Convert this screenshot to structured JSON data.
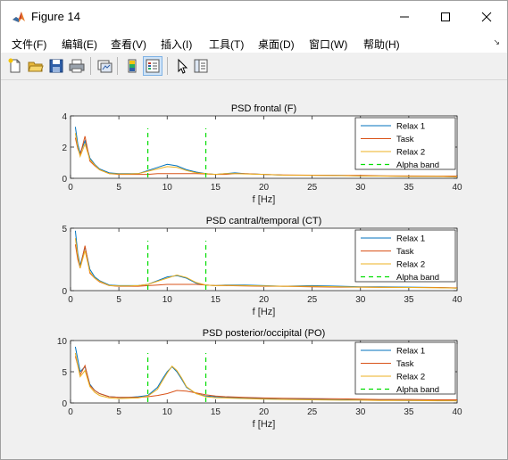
{
  "window": {
    "title": "Figure 14"
  },
  "menu": [
    "文件(F)",
    "编辑(E)",
    "查看(V)",
    "插入(I)",
    "工具(T)",
    "桌面(D)",
    "窗口(W)",
    "帮助(H)"
  ],
  "toolbar_icons": [
    "new-figure-icon",
    "open-file-icon",
    "save-icon",
    "print-icon",
    "link-plot-icon",
    "insert-colorbar-icon",
    "insert-legend-icon",
    "edit-plot-pointer-icon",
    "property-inspector-icon"
  ],
  "chart_data": [
    {
      "type": "line",
      "title": "PSD frontal (F)",
      "xlabel": "f [Hz]",
      "xlim": [
        0,
        40
      ],
      "ylim": [
        0,
        4
      ],
      "xticks": [
        "0",
        "5",
        "10",
        "15",
        "20",
        "25",
        "30",
        "35",
        "40"
      ],
      "yticks": [
        "0",
        "2",
        "4"
      ],
      "legend": {
        "position": "top-right",
        "entries": [
          "Relax 1",
          "Task",
          "Relax 2",
          "Alpha band"
        ]
      },
      "alpha_band": [
        8,
        14
      ],
      "series": [
        {
          "name": "Relax 1",
          "color": "#0072BD",
          "x": [
            0.5,
            0.75,
            1,
            1.5,
            2,
            2.5,
            3,
            4,
            5,
            6,
            7,
            8,
            9,
            10,
            11,
            12,
            13,
            14,
            15,
            16,
            17,
            18,
            20,
            22,
            25,
            28,
            30,
            32,
            35,
            38,
            40
          ],
          "y": [
            3.3,
            2.2,
            1.6,
            2.4,
            1.3,
            0.9,
            0.6,
            0.35,
            0.3,
            0.3,
            0.3,
            0.5,
            0.7,
            0.9,
            0.8,
            0.55,
            0.4,
            0.3,
            0.25,
            0.3,
            0.35,
            0.3,
            0.25,
            0.2,
            0.2,
            0.18,
            0.15,
            0.15,
            0.12,
            0.12,
            0.1
          ]
        },
        {
          "name": "Task",
          "color": "#D95319",
          "x": [
            0.5,
            0.75,
            1,
            1.5,
            2,
            2.5,
            3,
            4,
            5,
            6,
            7,
            8,
            9,
            10,
            11,
            12,
            13,
            14,
            15,
            16,
            17,
            18,
            20,
            22,
            25,
            28,
            30,
            32,
            35,
            38,
            40
          ],
          "y": [
            2.6,
            1.9,
            1.5,
            2.7,
            1.1,
            0.8,
            0.55,
            0.3,
            0.25,
            0.25,
            0.25,
            0.25,
            0.3,
            0.3,
            0.3,
            0.3,
            0.3,
            0.28,
            0.25,
            0.25,
            0.3,
            0.3,
            0.25,
            0.22,
            0.2,
            0.18,
            0.18,
            0.16,
            0.15,
            0.14,
            0.14
          ]
        },
        {
          "name": "Relax 2",
          "color": "#EDB120",
          "x": [
            0.5,
            0.75,
            1,
            1.5,
            2,
            2.5,
            3,
            4,
            5,
            6,
            7,
            8,
            9,
            10,
            11,
            12,
            13,
            14,
            15,
            16,
            17,
            18,
            20,
            22,
            25,
            28,
            30,
            32,
            35,
            38,
            40
          ],
          "y": [
            2.9,
            2.0,
            1.4,
            2.2,
            1.2,
            0.85,
            0.55,
            0.3,
            0.28,
            0.28,
            0.3,
            0.45,
            0.6,
            0.75,
            0.7,
            0.5,
            0.35,
            0.3,
            0.25,
            0.3,
            0.3,
            0.28,
            0.25,
            0.2,
            0.18,
            0.17,
            0.15,
            0.14,
            0.12,
            0.12,
            0.1
          ]
        },
        {
          "name": "Alpha band",
          "color": "#00DD00",
          "style": "dashed",
          "x_lines": [
            8,
            14
          ]
        }
      ]
    },
    {
      "type": "line",
      "title": "PSD cantral/temporal (CT)",
      "xlabel": "f [Hz]",
      "xlim": [
        0,
        40
      ],
      "ylim": [
        0,
        5
      ],
      "xticks": [
        "0",
        "5",
        "10",
        "15",
        "20",
        "25",
        "30",
        "35",
        "40"
      ],
      "yticks": [
        "0",
        "5"
      ],
      "legend": {
        "position": "top-right",
        "entries": [
          "Relax 1",
          "Task",
          "Relax 2",
          "Alpha band"
        ]
      },
      "alpha_band": [
        8,
        14
      ],
      "series": [
        {
          "name": "Relax 1",
          "color": "#0072BD",
          "x": [
            0.5,
            0.75,
            1,
            1.5,
            2,
            2.5,
            3,
            4,
            5,
            6,
            7,
            8,
            9,
            10,
            11,
            12,
            13,
            14,
            15,
            16,
            18,
            20,
            22,
            25,
            28,
            30,
            32,
            35,
            38,
            40
          ],
          "y": [
            4.8,
            3.0,
            2.0,
            3.5,
            1.7,
            1.1,
            0.8,
            0.45,
            0.4,
            0.4,
            0.4,
            0.5,
            0.8,
            1.1,
            1.2,
            1.0,
            0.6,
            0.45,
            0.4,
            0.45,
            0.45,
            0.4,
            0.35,
            0.4,
            0.35,
            0.3,
            0.3,
            0.28,
            0.25,
            0.2
          ]
        },
        {
          "name": "Task",
          "color": "#D95319",
          "x": [
            0.5,
            0.75,
            1,
            1.5,
            2,
            2.5,
            3,
            4,
            5,
            6,
            7,
            8,
            9,
            10,
            11,
            12,
            13,
            14,
            15,
            16,
            18,
            20,
            22,
            25,
            28,
            30,
            32,
            35,
            38,
            40
          ],
          "y": [
            3.7,
            2.5,
            1.8,
            3.6,
            1.4,
            1.0,
            0.7,
            0.4,
            0.35,
            0.35,
            0.35,
            0.4,
            0.45,
            0.5,
            0.5,
            0.5,
            0.5,
            0.45,
            0.4,
            0.4,
            0.38,
            0.35,
            0.35,
            0.3,
            0.28,
            0.28,
            0.26,
            0.25,
            0.25,
            0.22
          ]
        },
        {
          "name": "Relax 2",
          "color": "#EDB120",
          "x": [
            0.5,
            0.75,
            1,
            1.5,
            2,
            2.5,
            3,
            4,
            5,
            6,
            7,
            8,
            9,
            10,
            11,
            12,
            13,
            14,
            15,
            16,
            18,
            20,
            22,
            25,
            28,
            30,
            32,
            35,
            38,
            40
          ],
          "y": [
            4.2,
            2.8,
            1.8,
            3.2,
            1.5,
            1.0,
            0.75,
            0.4,
            0.38,
            0.38,
            0.4,
            0.5,
            0.75,
            1.0,
            1.25,
            1.05,
            0.65,
            0.45,
            0.4,
            0.42,
            0.4,
            0.38,
            0.35,
            0.35,
            0.3,
            0.28,
            0.27,
            0.25,
            0.22,
            0.2
          ]
        },
        {
          "name": "Alpha band",
          "color": "#00DD00",
          "style": "dashed",
          "x_lines": [
            8,
            14
          ]
        }
      ]
    },
    {
      "type": "line",
      "title": "PSD posterior/occipital (PO)",
      "xlabel": "f [Hz]",
      "xlim": [
        0,
        40
      ],
      "ylim": [
        0,
        10
      ],
      "xticks": [
        "0",
        "5",
        "10",
        "15",
        "20",
        "25",
        "30",
        "35",
        "40"
      ],
      "yticks": [
        "0",
        "5",
        "10"
      ],
      "legend": {
        "position": "top-right",
        "entries": [
          "Relax 1",
          "Task",
          "Relax 2",
          "Alpha band"
        ]
      },
      "alpha_band": [
        8,
        14
      ],
      "series": [
        {
          "name": "Relax 1",
          "color": "#0072BD",
          "x": [
            0.5,
            0.75,
            1,
            1.5,
            2,
            2.5,
            3,
            4,
            5,
            6,
            7,
            8,
            9,
            9.5,
            10,
            10.5,
            11,
            11.5,
            12,
            13,
            14,
            15,
            16,
            18,
            20,
            22,
            25,
            28,
            30,
            32,
            35,
            38,
            40
          ],
          "y": [
            9.0,
            7.0,
            5.0,
            5.8,
            3.0,
            2.0,
            1.5,
            1.0,
            0.9,
            0.9,
            1.0,
            1.2,
            2.5,
            3.8,
            5.0,
            5.8,
            5.0,
            3.8,
            2.5,
            1.5,
            1.1,
            1.0,
            0.9,
            0.8,
            0.7,
            0.6,
            0.6,
            0.5,
            0.5,
            0.45,
            0.4,
            0.4,
            0.35
          ]
        },
        {
          "name": "Task",
          "color": "#D95319",
          "x": [
            0.5,
            0.75,
            1,
            1.5,
            2,
            2.5,
            3,
            4,
            5,
            6,
            7,
            8,
            9,
            10,
            11,
            12,
            13,
            14,
            15,
            16,
            18,
            20,
            22,
            25,
            28,
            30,
            32,
            35,
            38,
            40
          ],
          "y": [
            7.5,
            6.0,
            4.5,
            6.0,
            2.8,
            2.0,
            1.5,
            1.0,
            0.9,
            0.9,
            0.9,
            1.0,
            1.2,
            1.5,
            2.0,
            1.9,
            1.6,
            1.3,
            1.1,
            1.0,
            0.9,
            0.8,
            0.75,
            0.7,
            0.65,
            0.6,
            0.55,
            0.55,
            0.5,
            0.5
          ]
        },
        {
          "name": "Relax 2",
          "color": "#EDB120",
          "x": [
            0.5,
            0.75,
            1,
            1.5,
            2,
            2.5,
            3,
            4,
            5,
            6,
            7,
            8,
            9,
            9.5,
            10,
            10.5,
            11,
            11.5,
            12,
            13,
            14,
            15,
            16,
            18,
            20,
            22,
            25,
            28,
            30,
            32,
            35,
            38,
            40
          ],
          "y": [
            8.0,
            6.0,
            4.2,
            5.2,
            2.6,
            1.7,
            1.2,
            0.8,
            0.7,
            0.75,
            0.8,
            1.1,
            2.2,
            3.5,
            4.8,
            5.9,
            5.2,
            4.0,
            2.6,
            1.5,
            1.0,
            0.85,
            0.8,
            0.7,
            0.6,
            0.55,
            0.5,
            0.45,
            0.45,
            0.4,
            0.38,
            0.35,
            0.33
          ]
        },
        {
          "name": "Alpha band",
          "color": "#00DD00",
          "style": "dashed",
          "x_lines": [
            8,
            14
          ]
        }
      ]
    }
  ]
}
